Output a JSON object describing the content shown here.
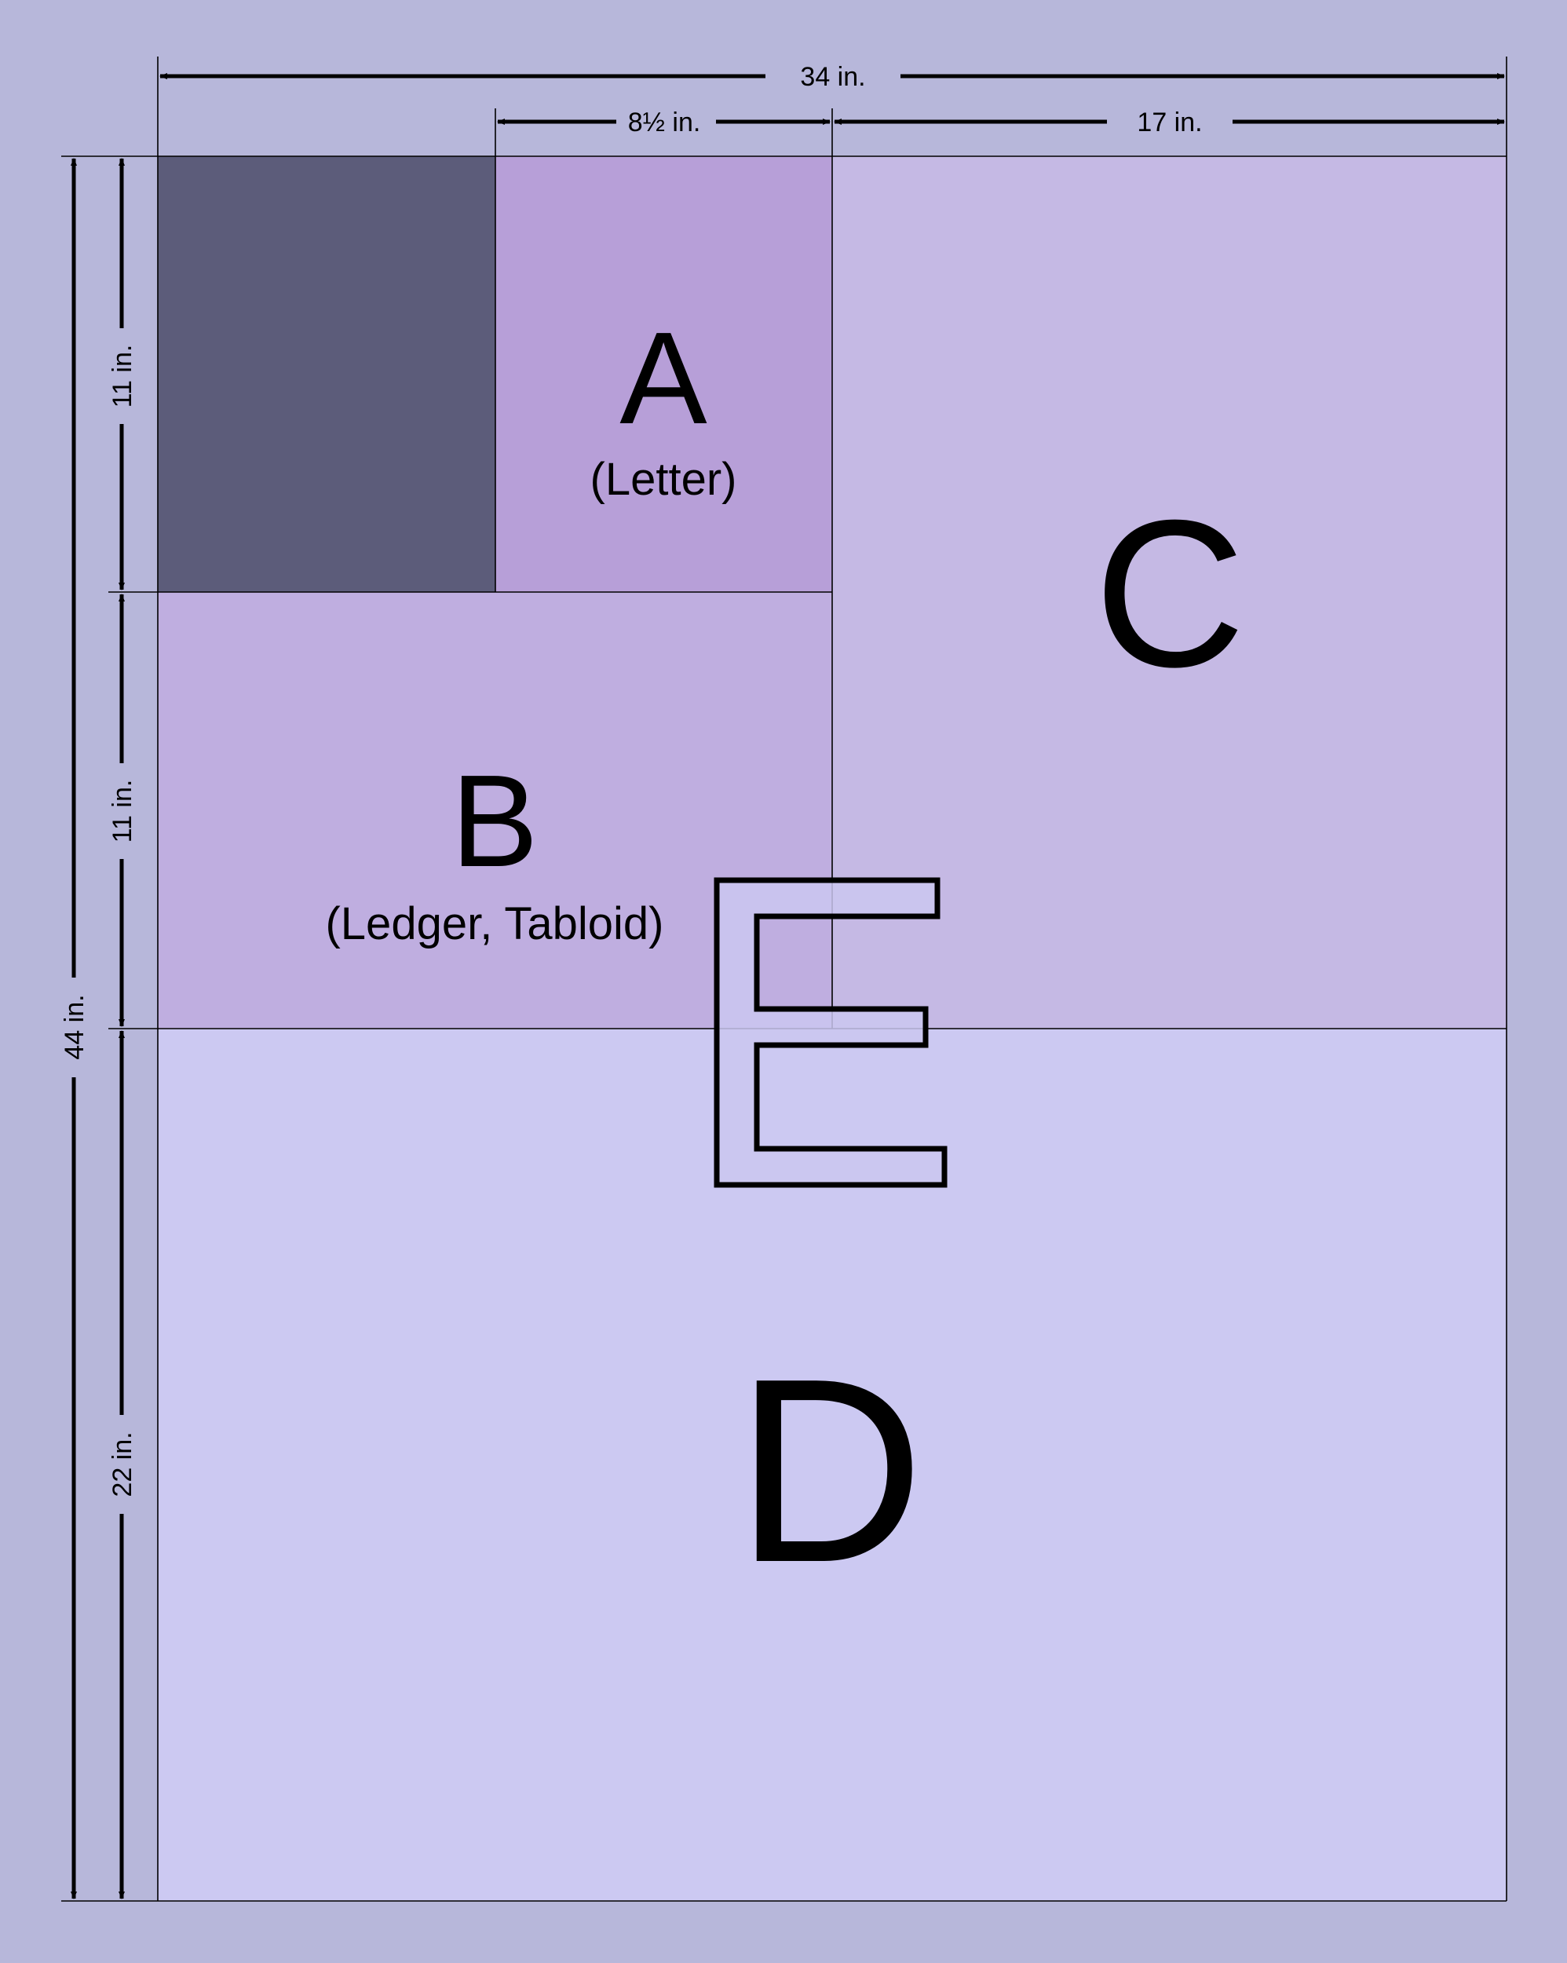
{
  "colors": {
    "background": "#b7b7da",
    "unlabeled_sheet": "#5c5c7a",
    "size_a": "#b79fd8",
    "size_b": "#bfaee0",
    "size_c": "#c5b9e4",
    "size_d": "#ccc9f2",
    "size_e_fill": "#cac7f0"
  },
  "dimensions": {
    "total_width": "34 in.",
    "a_width": "8½ in.",
    "c_width": "17 in.",
    "a_height": "11 in.",
    "b_height": "11 in.",
    "d_height": "22 in.",
    "total_height": "44 in."
  },
  "sheets": {
    "a": {
      "letter": "A",
      "name": "(Letter)"
    },
    "b": {
      "letter": "B",
      "name": "(Ledger, Tabloid)"
    },
    "c": {
      "letter": "C"
    },
    "d": {
      "letter": "D"
    },
    "e": {
      "letter": "E"
    }
  }
}
